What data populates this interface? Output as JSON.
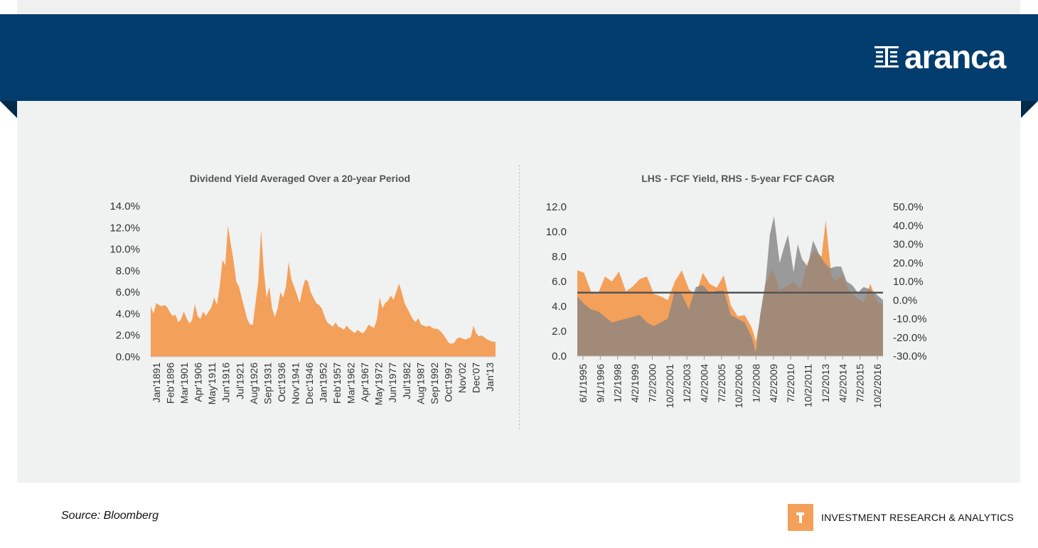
{
  "brand": {
    "name": "aranca",
    "tagline": "INVESTMENT RESEARCH & ANALYTICS"
  },
  "source": "Source: Bloomberg",
  "colors": {
    "header": "#033d6d",
    "orange": "#f3a05a",
    "gray": "#9a9a9a",
    "brown": "#a28a78",
    "line": "#555555"
  },
  "chart_data": [
    {
      "type": "area",
      "title": "Dividend Yield Averaged Over a 20-year Period",
      "ylim": [
        0,
        0.14
      ],
      "yticks": [
        "0.0%",
        "2.0%",
        "4.0%",
        "6.0%",
        "8.0%",
        "10.0%",
        "12.0%",
        "14.0%"
      ],
      "x_tick_labels": [
        "Jan'1891",
        "Feb'1896",
        "Mar'1901",
        "Apr'1906",
        "May'1911",
        "Jun'1916",
        "Jul'1921",
        "Aug'1926",
        "Sep'1931",
        "Oct'1936",
        "Nov'1941",
        "Dec'1946",
        "Jan'1952",
        "Feb'1957",
        "Mar'1962",
        "Apr'1967",
        "May'1972",
        "Jun'1977",
        "Jul'1982",
        "Aug'1987",
        "Sep'1992",
        "Oct'1997",
        "Nov'02",
        "Dec'07",
        "Jan'13"
      ],
      "x": [
        1891,
        1892,
        1893,
        1894,
        1895,
        1896,
        1897,
        1898,
        1899,
        1900,
        1901,
        1902,
        1903,
        1904,
        1905,
        1906,
        1907,
        1908,
        1909,
        1910,
        1911,
        1912,
        1913,
        1914,
        1915,
        1916,
        1917,
        1918,
        1919,
        1920,
        1921,
        1922,
        1923,
        1924,
        1925,
        1926,
        1927,
        1928,
        1929,
        1930,
        1931,
        1932,
        1933,
        1934,
        1935,
        1936,
        1937,
        1938,
        1939,
        1940,
        1941,
        1942,
        1943,
        1944,
        1945,
        1946,
        1947,
        1948,
        1949,
        1950,
        1951,
        1952,
        1953,
        1954,
        1955,
        1956,
        1957,
        1958,
        1959,
        1960,
        1961,
        1962,
        1963,
        1964,
        1965,
        1966,
        1967,
        1968,
        1969,
        1970,
        1971,
        1972,
        1973,
        1974,
        1975,
        1976,
        1977,
        1978,
        1979,
        1980,
        1981,
        1982,
        1983,
        1984,
        1985,
        1986,
        1987,
        1988,
        1989,
        1990,
        1991,
        1992,
        1993,
        1994,
        1995,
        1996,
        1997,
        1998,
        1999,
        2000,
        2001,
        2002,
        2003,
        2004,
        2005,
        2006,
        2007,
        2008,
        2009,
        2010,
        2011,
        2012,
        2013,
        2014,
        2015,
        2016
      ],
      "values": [
        0.047,
        0.04,
        0.05,
        0.048,
        0.047,
        0.048,
        0.046,
        0.041,
        0.038,
        0.039,
        0.032,
        0.035,
        0.042,
        0.036,
        0.031,
        0.034,
        0.049,
        0.038,
        0.035,
        0.042,
        0.038,
        0.042,
        0.046,
        0.055,
        0.048,
        0.065,
        0.09,
        0.085,
        0.122,
        0.105,
        0.09,
        0.07,
        0.065,
        0.055,
        0.045,
        0.035,
        0.03,
        0.03,
        0.05,
        0.07,
        0.118,
        0.08,
        0.055,
        0.065,
        0.045,
        0.037,
        0.045,
        0.06,
        0.055,
        0.065,
        0.088,
        0.072,
        0.065,
        0.058,
        0.05,
        0.063,
        0.072,
        0.07,
        0.06,
        0.055,
        0.05,
        0.048,
        0.045,
        0.038,
        0.032,
        0.03,
        0.028,
        0.032,
        0.028,
        0.027,
        0.025,
        0.029,
        0.026,
        0.024,
        0.022,
        0.025,
        0.023,
        0.022,
        0.025,
        0.03,
        0.028,
        0.027,
        0.035,
        0.055,
        0.045,
        0.05,
        0.052,
        0.057,
        0.053,
        0.06,
        0.068,
        0.06,
        0.05,
        0.045,
        0.04,
        0.035,
        0.032,
        0.036,
        0.03,
        0.029,
        0.028,
        0.029,
        0.027,
        0.026,
        0.026,
        0.024,
        0.021,
        0.017,
        0.013,
        0.012,
        0.013,
        0.017,
        0.018,
        0.017,
        0.016,
        0.017,
        0.018,
        0.029,
        0.022,
        0.019,
        0.02,
        0.018,
        0.016,
        0.015,
        0.014,
        0.014
      ]
    },
    {
      "type": "area",
      "title": "LHS - FCF Yield, RHS - 5-year FCF CAGR",
      "ylim": [
        0,
        12
      ],
      "y2lim": [
        -0.3,
        0.5
      ],
      "yticks": [
        "0.0",
        "2.0",
        "4.0",
        "6.0",
        "8.0",
        "10.0",
        "12.0"
      ],
      "y2ticks": [
        "-30.0%",
        "-20.0%",
        "-10.0%",
        "0.0%",
        "10.0%",
        "20.0%",
        "30.0%",
        "40.0%",
        "50.0%"
      ],
      "x_tick_labels": [
        "6/1/1995",
        "9/1/1996",
        "1/2/1998",
        "4/2/1999",
        "7/2/2000",
        "10/2/2001",
        "1/2/2003",
        "4/2/2004",
        "7/2/2005",
        "10/2/2006",
        "1/2/2008",
        "4/2/2009",
        "7/2/2010",
        "10/2/2011",
        "1/2/2013",
        "4/2/2014",
        "7/2/2015",
        "10/2/2016"
      ],
      "series": [
        {
          "name": "FCF Yield",
          "axis": "left",
          "x": [
            1995.42,
            1995.9,
            1996.4,
            1996.9,
            1997.4,
            1997.9,
            1998.4,
            1998.9,
            1999.4,
            1999.9,
            2000.4,
            2000.9,
            2001.4,
            2001.9,
            2002.4,
            2002.9,
            2003.4,
            2003.9,
            2004.4,
            2004.9,
            2005.4,
            2005.9,
            2006.4,
            2006.9,
            2007.4,
            2007.9,
            2008.2,
            2008.5,
            2008.9,
            2009.4,
            2009.9,
            2010.4,
            2010.9,
            2011.4,
            2011.9,
            2012.4,
            2012.9,
            2013.2,
            2013.6,
            2013.9,
            2014.4,
            2014.9,
            2015.4,
            2015.9,
            2016.4,
            2016.9,
            2017.3
          ],
          "values": [
            6.9,
            6.7,
            5.2,
            5.0,
            6.4,
            6.0,
            6.8,
            5.2,
            5.6,
            6.2,
            6.4,
            5.0,
            4.8,
            4.5,
            6.0,
            6.9,
            5.4,
            4.9,
            6.7,
            5.8,
            5.5,
            6.5,
            4.1,
            3.2,
            3.3,
            2.3,
            1.2,
            3.0,
            5.8,
            7.0,
            5.3,
            5.6,
            6.0,
            5.3,
            7.5,
            8.5,
            8.0,
            10.9,
            6.5,
            6.0,
            6.5,
            5.2,
            4.7,
            4.3,
            5.8,
            4.3,
            4.2
          ]
        },
        {
          "name": "5-year FCF CAGR",
          "axis": "right",
          "x": [
            1995.42,
            1995.9,
            1996.4,
            1996.9,
            1997.4,
            1997.9,
            1998.4,
            1998.9,
            1999.4,
            1999.9,
            2000.4,
            2000.9,
            2001.4,
            2001.9,
            2002.4,
            2002.9,
            2003.4,
            2003.9,
            2004.4,
            2004.9,
            2005.4,
            2005.9,
            2006.4,
            2006.9,
            2007.4,
            2007.9,
            2008.2,
            2008.5,
            2008.9,
            2009.2,
            2009.5,
            2009.9,
            2010.2,
            2010.5,
            2010.9,
            2011.2,
            2011.5,
            2011.9,
            2012.3,
            2012.7,
            2013.1,
            2013.5,
            2013.9,
            2014.3,
            2014.7,
            2015.1,
            2015.5,
            2015.9,
            2016.3,
            2016.7,
            2017.3
          ],
          "values": [
            0.02,
            -0.02,
            -0.05,
            -0.06,
            -0.09,
            -0.12,
            -0.11,
            -0.1,
            -0.09,
            -0.08,
            -0.12,
            -0.14,
            -0.12,
            -0.1,
            0.05,
            0.03,
            -0.05,
            0.07,
            0.08,
            0.04,
            0.05,
            0.05,
            -0.08,
            -0.1,
            -0.12,
            -0.2,
            -0.28,
            -0.08,
            0.1,
            0.35,
            0.45,
            0.2,
            0.28,
            0.35,
            0.15,
            0.3,
            0.22,
            0.18,
            0.32,
            0.25,
            0.2,
            0.17,
            0.18,
            0.18,
            0.1,
            0.08,
            0.04,
            0.07,
            0.06,
            0.04,
            0.0
          ]
        }
      ],
      "reference_line": {
        "axis": "left",
        "value": 5.1
      }
    }
  ]
}
